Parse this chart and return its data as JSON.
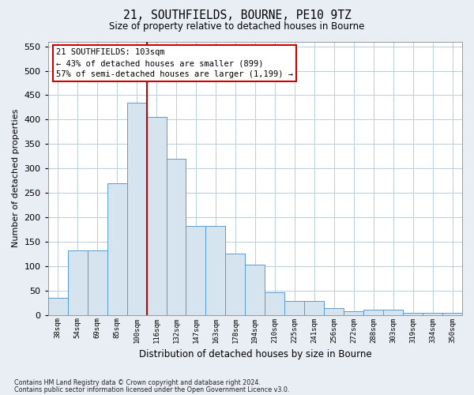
{
  "title1": "21, SOUTHFIELDS, BOURNE, PE10 9TZ",
  "title2": "Size of property relative to detached houses in Bourne",
  "xlabel": "Distribution of detached houses by size in Bourne",
  "ylabel": "Number of detached properties",
  "categories": [
    "38sqm",
    "54sqm",
    "69sqm",
    "85sqm",
    "100sqm",
    "116sqm",
    "132sqm",
    "147sqm",
    "163sqm",
    "178sqm",
    "194sqm",
    "210sqm",
    "225sqm",
    "241sqm",
    "256sqm",
    "272sqm",
    "288sqm",
    "303sqm",
    "319sqm",
    "334sqm",
    "350sqm"
  ],
  "values": [
    35,
    132,
    132,
    270,
    435,
    405,
    320,
    183,
    183,
    125,
    103,
    46,
    28,
    28,
    14,
    7,
    10,
    10,
    5,
    5,
    5
  ],
  "bar_color": "#d6e4f0",
  "bar_edge_color": "#5b9bd5",
  "vline_x": 4.5,
  "vline_color": "#cc0000",
  "annotation_text": "21 SOUTHFIELDS: 103sqm\n← 43% of detached houses are smaller (899)\n57% of semi-detached houses are larger (1,199) →",
  "annotation_box_color": "#ffffff",
  "annotation_box_edge": "#cc0000",
  "ylim": [
    0,
    560
  ],
  "yticks": [
    0,
    50,
    100,
    150,
    200,
    250,
    300,
    350,
    400,
    450,
    500,
    550
  ],
  "footer1": "Contains HM Land Registry data © Crown copyright and database right 2024.",
  "footer2": "Contains public sector information licensed under the Open Government Licence v3.0.",
  "background_color": "#e8eef4",
  "plot_bg_color": "#ffffff",
  "grid_color": "#b8cfe0"
}
